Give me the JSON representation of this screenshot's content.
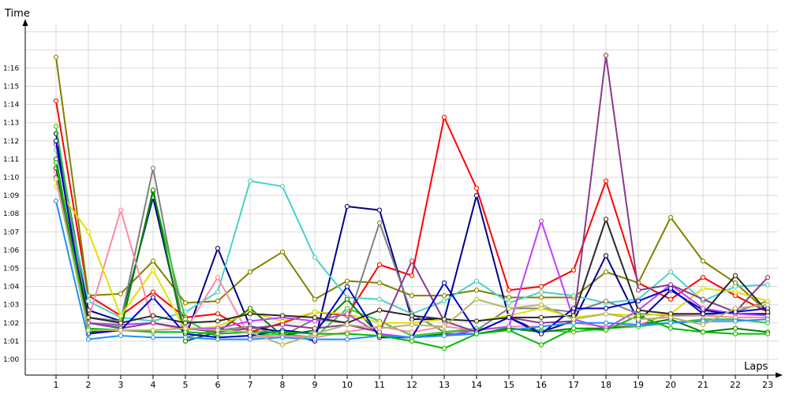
{
  "chart_data": {
    "type": "line",
    "title": "",
    "xlabel": "Laps",
    "ylabel": "Time",
    "x": [
      1,
      2,
      3,
      4,
      5,
      6,
      7,
      8,
      9,
      10,
      11,
      12,
      13,
      14,
      15,
      16,
      17,
      18,
      19,
      20,
      21,
      22,
      23
    ],
    "x_tick_labels": [
      "1",
      "2",
      "3",
      "4",
      "5",
      "6",
      "7",
      "8",
      "9",
      "10",
      "11",
      "12",
      "13",
      "14",
      "15",
      "16",
      "17",
      "18",
      "19",
      "20",
      "21",
      "22",
      "23"
    ],
    "y_tick_labels": [
      "1:00",
      "1:01",
      "1:02",
      "1:03",
      "1:04",
      "1:05",
      "1:06",
      "1:07",
      "1:08",
      "1:09",
      "1:10",
      "1:11",
      "1:12",
      "1:13",
      "1:14",
      "1:15",
      "1:16"
    ],
    "y_tick_values": [
      60,
      61,
      62,
      63,
      64,
      65,
      66,
      67,
      68,
      69,
      70,
      71,
      72,
      73,
      74,
      75,
      76
    ],
    "xlim": [
      0.5,
      23.5
    ],
    "ylim": [
      59,
      79
    ],
    "grid": true,
    "legend": "none",
    "series": [
      {
        "color": "#ff0000",
        "values": [
          74.2,
          63.5,
          62.4,
          63.7,
          62.3,
          62.5,
          61.5,
          62.0,
          62.6,
          62.4,
          65.2,
          64.6,
          73.3,
          69.4,
          63.8,
          64.0,
          64.9,
          69.8,
          64.2,
          63.3,
          64.5,
          63.5,
          62.6
        ]
      },
      {
        "color": "#808000",
        "values": [
          76.6,
          63.5,
          63.6,
          65.4,
          63.1,
          63.2,
          64.8,
          65.9,
          63.3,
          64.3,
          64.2,
          63.5,
          63.5,
          63.8,
          63.4,
          63.4,
          63.4,
          64.8,
          64.2,
          67.8,
          65.4,
          64.2,
          62.6
        ]
      },
      {
        "color": "#00008b",
        "values": [
          72.4,
          62.7,
          62.1,
          68.9,
          61.2,
          66.1,
          61.8,
          61.5,
          61.0,
          68.4,
          68.2,
          62.2,
          62.2,
          69.0,
          62.3,
          61.5,
          62.1,
          65.7,
          62.1,
          63.8,
          62.7,
          62.5,
          62.5
        ]
      },
      {
        "color": "#48d1cc",
        "values": [
          71.5,
          63.2,
          62.3,
          62.1,
          62.6,
          63.7,
          69.8,
          69.5,
          65.6,
          63.4,
          63.3,
          62.5,
          63.2,
          64.3,
          63.1,
          63.7,
          63.5,
          63.1,
          63.3,
          64.8,
          63.2,
          64.0,
          64.1
        ]
      },
      {
        "color": "#808080",
        "values": [
          71.9,
          62.3,
          62.1,
          70.5,
          61.2,
          61.6,
          61.8,
          61.3,
          62.2,
          62.0,
          67.5,
          62.5,
          61.5,
          61.6,
          62.8,
          62.8,
          62.6,
          63.2,
          62.5,
          62.4,
          62.4,
          62.6,
          63.2
        ]
      },
      {
        "color": "#32cd32",
        "values": [
          72.8,
          62.0,
          61.8,
          69.2,
          62.2,
          61.2,
          61.3,
          61.4,
          61.2,
          62.8,
          62.1,
          61.3,
          61.5,
          61.7,
          61.7,
          61.6,
          61.5,
          61.7,
          61.8,
          62.0,
          62.2,
          62.2,
          62.0
        ]
      },
      {
        "color": "#008000",
        "values": [
          71.0,
          61.5,
          61.6,
          69.3,
          61.0,
          61.5,
          62.8,
          61.3,
          61.6,
          63.3,
          61.3,
          61.2,
          61.4,
          61.4,
          61.7,
          61.5,
          61.7,
          61.7,
          61.9,
          62.2,
          61.5,
          61.7,
          61.5
        ]
      },
      {
        "color": "#ff88aa",
        "values": [
          70.3,
          62.2,
          68.2,
          62.0,
          61.6,
          64.5,
          61.2,
          61.3,
          61.2,
          61.5,
          61.8,
          61.5,
          61.8,
          61.6,
          61.8,
          61.8,
          62.0,
          61.8,
          61.9,
          62.5,
          62.4,
          62.3,
          62.3
        ]
      },
      {
        "color": "#e0e000",
        "values": [
          69.5,
          67.0,
          62.4,
          64.9,
          61.6,
          61.8,
          62.6,
          62.1,
          62.6,
          62.5,
          62.0,
          62.0,
          62.2,
          62.1,
          62.4,
          62.8,
          62.3,
          62.5,
          62.4,
          62.5,
          63.9,
          63.7,
          63.2
        ]
      },
      {
        "color": "#bf40ff",
        "values": [
          71.8,
          62.0,
          61.9,
          62.0,
          61.7,
          61.7,
          62.1,
          62.3,
          62.1,
          62.5,
          61.4,
          61.2,
          61.3,
          61.6,
          61.8,
          67.6,
          62.2,
          61.7,
          62.7,
          64.1,
          62.8,
          62.5,
          62.4
        ]
      },
      {
        "color": "#8b3a8b",
        "values": [
          70.0,
          62.0,
          61.7,
          62.0,
          61.7,
          61.5,
          61.7,
          61.9,
          61.7,
          61.9,
          61.5,
          65.4,
          62.1,
          61.5,
          62.3,
          62.0,
          62.1,
          76.7,
          63.8,
          64.1,
          63.3,
          62.6,
          64.5
        ]
      },
      {
        "color": "#2a2a2a",
        "values": [
          70.5,
          62.3,
          62.0,
          62.4,
          62.0,
          62.1,
          62.5,
          62.4,
          62.3,
          62.0,
          62.7,
          62.4,
          62.2,
          62.1,
          62.3,
          62.3,
          62.4,
          67.7,
          62.7,
          62.5,
          62.5,
          64.6,
          62.6
        ]
      },
      {
        "color": "#0000cd",
        "values": [
          72.0,
          61.4,
          61.6,
          63.4,
          61.4,
          61.2,
          61.3,
          61.6,
          61.4,
          64.0,
          61.2,
          61.2,
          64.2,
          61.5,
          62.3,
          61.4,
          62.8,
          62.8,
          63.2,
          63.9,
          62.5,
          62.6,
          62.8
        ]
      },
      {
        "color": "#1e90ff",
        "values": [
          68.7,
          61.1,
          61.3,
          61.2,
          61.2,
          61.1,
          61.1,
          61.2,
          61.1,
          61.1,
          61.3,
          61.2,
          61.3,
          61.4,
          61.6,
          61.8,
          62.0,
          62.0,
          61.9,
          62.0,
          62.1,
          62.1,
          62.2
        ]
      },
      {
        "color": "#00bb00",
        "values": [
          70.8,
          61.7,
          61.6,
          61.5,
          61.5,
          61.4,
          61.5,
          61.5,
          61.4,
          61.4,
          61.3,
          61.0,
          60.6,
          61.4,
          61.6,
          60.8,
          61.7,
          61.6,
          62.4,
          61.7,
          61.5,
          61.4,
          61.4
        ]
      },
      {
        "color": "#b4b46e",
        "values": [
          69.9,
          61.6,
          61.6,
          61.6,
          61.7,
          61.6,
          61.5,
          60.8,
          61.4,
          61.9,
          61.7,
          61.9,
          61.8,
          63.3,
          62.8,
          63.0,
          62.2,
          62.5,
          62.2,
          62.3,
          61.9,
          62.8,
          63.0
        ]
      }
    ]
  }
}
